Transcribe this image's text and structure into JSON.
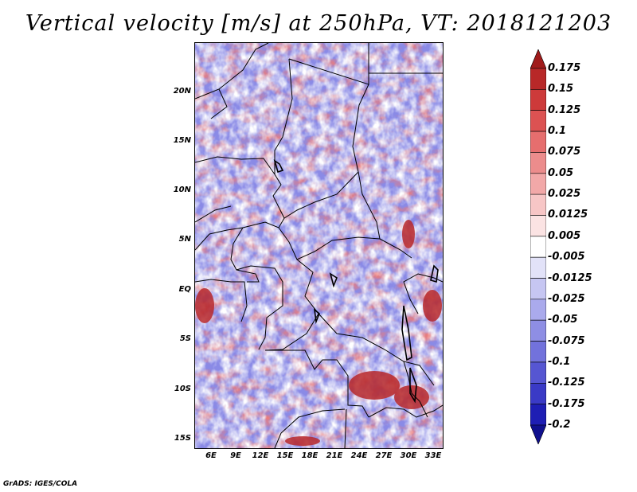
{
  "title": "Vertical velocity [m/s] at 250hPa, VT: 2018121203",
  "credit": "GrADS: IGES/COLA",
  "lat_labels": [
    "20N",
    "15N",
    "10N",
    "5N",
    "EQ",
    "5S",
    "10S",
    "15S"
  ],
  "lon_labels": [
    "6E",
    "9E",
    "12E",
    "15E",
    "18E",
    "21E",
    "24E",
    "27E",
    "30E",
    "33E"
  ],
  "colorbar": {
    "levels": [
      "0.175",
      "0.15",
      "0.125",
      "0.1",
      "0.075",
      "0.05",
      "0.025",
      "0.0125",
      "0.005",
      "-0.005",
      "-0.0125",
      "-0.025",
      "-0.05",
      "-0.075",
      "-0.1",
      "-0.125",
      "-0.175",
      "-0.2"
    ],
    "colors": [
      "#a01b1b",
      "#b82828",
      "#cd3a3a",
      "#dc5252",
      "#e66e6e",
      "#ec8c8c",
      "#f2a8a8",
      "#f7c6c6",
      "#fbe3e3",
      "#ffffff",
      "#e2e2f8",
      "#c6c6f2",
      "#aaaaec",
      "#8e8ee4",
      "#7272dc",
      "#5656d2",
      "#3a3ac6",
      "#1e1eb4",
      "#10108e"
    ]
  }
}
